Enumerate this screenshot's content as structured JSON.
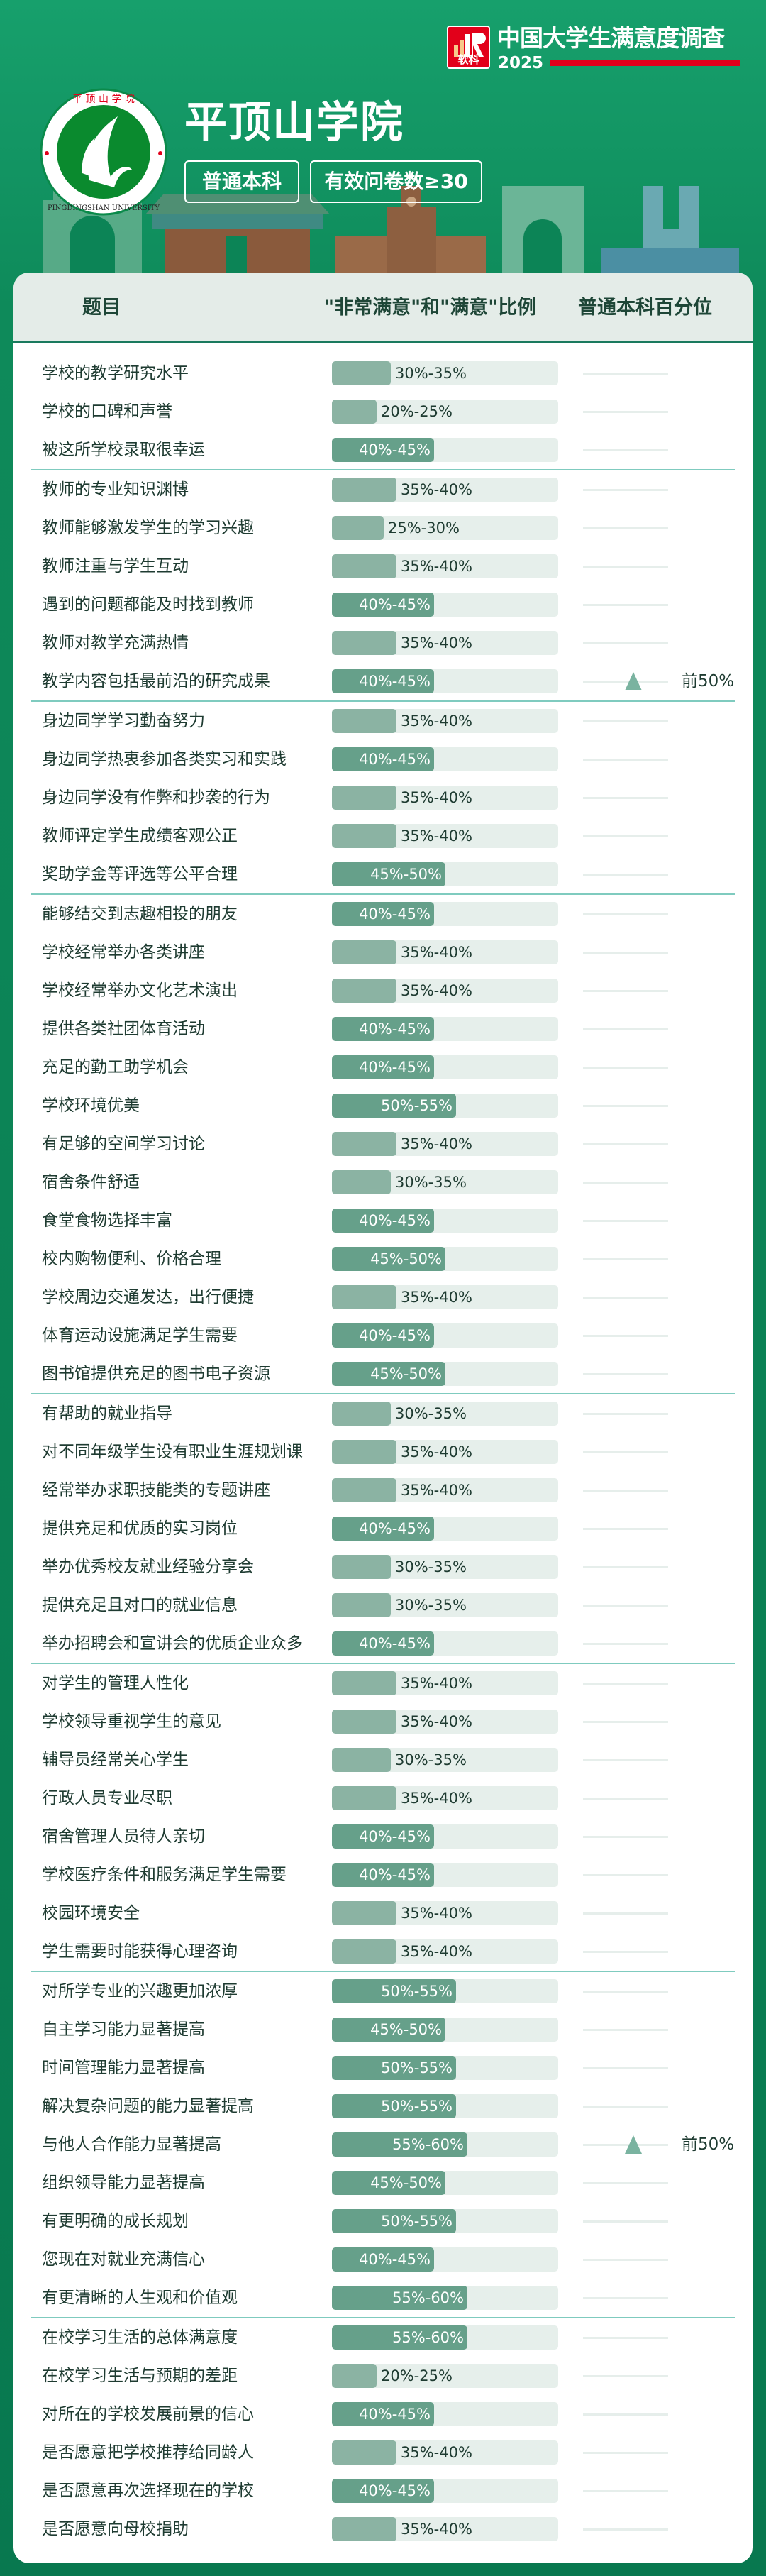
{
  "brand": {
    "logo_text": "软科",
    "title": "中国大学生满意度调查",
    "year": "2025",
    "color": "#e2001a"
  },
  "school": {
    "name": "平顶山学院",
    "seal_text_cn": "平顶山学院",
    "seal_text_en": "PINGDINGSHAN UNIVERSITY"
  },
  "tags": [
    "普通本科",
    "有效问卷数≥30"
  ],
  "table": {
    "headers": {
      "item": "题目",
      "ratio": "\"非常满意\"和\"满意\"比例",
      "percentile": "普通本科百分位"
    },
    "colors": {
      "fill_light": "#8bb3a3",
      "fill_dark": "#66a08a",
      "track": "#e6efeb",
      "separator": "#7fcbbf",
      "marker": "#7ab3a0"
    },
    "groups": [
      {
        "rows": [
          {
            "label": "学校的教学研究水平",
            "range": "30%-35%"
          },
          {
            "label": "学校的口碑和声誉",
            "range": "20%-25%"
          },
          {
            "label": "被这所学校录取很幸运",
            "range": "40%-45%"
          }
        ]
      },
      {
        "rows": [
          {
            "label": "教师的专业知识渊博",
            "range": "35%-40%"
          },
          {
            "label": "教师能够激发学生的学习兴趣",
            "range": "25%-30%"
          },
          {
            "label": "教师注重与学生互动",
            "range": "35%-40%"
          },
          {
            "label": "遇到的问题都能及时找到教师",
            "range": "40%-45%"
          },
          {
            "label": "教师对教学充满热情",
            "range": "35%-40%"
          },
          {
            "label": "教学内容包括最前沿的研究成果",
            "range": "40%-45%",
            "percentile": "前50%"
          }
        ]
      },
      {
        "rows": [
          {
            "label": "身边同学学习勤奋努力",
            "range": "35%-40%"
          },
          {
            "label": "身边同学热衷参加各类实习和实践",
            "range": "40%-45%"
          },
          {
            "label": "身边同学没有作弊和抄袭的行为",
            "range": "35%-40%"
          },
          {
            "label": "教师评定学生成绩客观公正",
            "range": "35%-40%"
          },
          {
            "label": "奖助学金等评选等公平合理",
            "range": "45%-50%"
          }
        ]
      },
      {
        "rows": [
          {
            "label": "能够结交到志趣相投的朋友",
            "range": "40%-45%"
          },
          {
            "label": "学校经常举办各类讲座",
            "range": "35%-40%"
          },
          {
            "label": "学校经常举办文化艺术演出",
            "range": "35%-40%"
          },
          {
            "label": "提供各类社团体育活动",
            "range": "40%-45%"
          },
          {
            "label": "充足的勤工助学机会",
            "range": "40%-45%"
          },
          {
            "label": "学校环境优美",
            "range": "50%-55%"
          },
          {
            "label": "有足够的空间学习讨论",
            "range": "35%-40%"
          },
          {
            "label": "宿舍条件舒适",
            "range": "30%-35%"
          },
          {
            "label": "食堂食物选择丰富",
            "range": "40%-45%"
          },
          {
            "label": "校内购物便利、价格合理",
            "range": "45%-50%"
          },
          {
            "label": "学校周边交通发达，出行便捷",
            "range": "35%-40%"
          },
          {
            "label": "体育运动设施满足学生需要",
            "range": "40%-45%"
          },
          {
            "label": "图书馆提供充足的图书电子资源",
            "range": "45%-50%"
          }
        ]
      },
      {
        "rows": [
          {
            "label": "有帮助的就业指导",
            "range": "30%-35%"
          },
          {
            "label": "对不同年级学生设有职业生涯规划课",
            "range": "35%-40%"
          },
          {
            "label": "经常举办求职技能类的专题讲座",
            "range": "35%-40%"
          },
          {
            "label": "提供充足和优质的实习岗位",
            "range": "40%-45%"
          },
          {
            "label": "举办优秀校友就业经验分享会",
            "range": "30%-35%"
          },
          {
            "label": "提供充足且对口的就业信息",
            "range": "30%-35%"
          },
          {
            "label": "举办招聘会和宣讲会的优质企业众多",
            "range": "40%-45%"
          }
        ]
      },
      {
        "rows": [
          {
            "label": "对学生的管理人性化",
            "range": "35%-40%"
          },
          {
            "label": "学校领导重视学生的意见",
            "range": "35%-40%"
          },
          {
            "label": "辅导员经常关心学生",
            "range": "30%-35%"
          },
          {
            "label": "行政人员专业尽职",
            "range": "35%-40%"
          },
          {
            "label": "宿舍管理人员待人亲切",
            "range": "40%-45%"
          },
          {
            "label": "学校医疗条件和服务满足学生需要",
            "range": "40%-45%"
          },
          {
            "label": "校园环境安全",
            "range": "35%-40%"
          },
          {
            "label": "学生需要时能获得心理咨询",
            "range": "35%-40%"
          }
        ]
      },
      {
        "rows": [
          {
            "label": "对所学专业的兴趣更加浓厚",
            "range": "50%-55%"
          },
          {
            "label": "自主学习能力显著提高",
            "range": "45%-50%"
          },
          {
            "label": "时间管理能力显著提高",
            "range": "50%-55%"
          },
          {
            "label": "解决复杂问题的能力显著提高",
            "range": "50%-55%"
          },
          {
            "label": "与他人合作能力显著提高",
            "range": "55%-60%",
            "percentile": "前50%"
          },
          {
            "label": "组织领导能力显著提高",
            "range": "45%-50%"
          },
          {
            "label": "有更明确的成长规划",
            "range": "50%-55%"
          },
          {
            "label": "您现在对就业充满信心",
            "range": "40%-45%"
          },
          {
            "label": "有更清晰的人生观和价值观",
            "range": "55%-60%"
          }
        ]
      },
      {
        "rows": [
          {
            "label": "在校学习生活的总体满意度",
            "range": "55%-60%"
          },
          {
            "label": "在校学习生活与预期的差距",
            "range": "20%-25%"
          },
          {
            "label": "对所在的学校发展前景的信心",
            "range": "40%-45%"
          },
          {
            "label": "是否愿意把学校推荐给同龄人",
            "range": "35%-40%"
          },
          {
            "label": "是否愿意再次选择现在的学校",
            "range": "40%-45%"
          },
          {
            "label": "是否愿意向母校捐助",
            "range": "35%-40%"
          }
        ]
      }
    ]
  }
}
